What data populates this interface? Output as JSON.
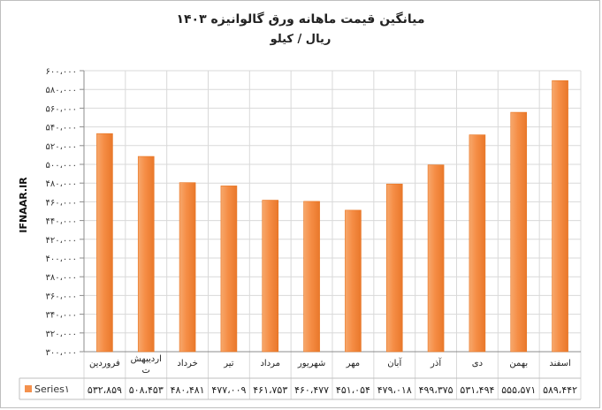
{
  "chart_data": {
    "type": "bar",
    "title": "میانگین قیمت ماهانه ورق گالوانیزه ۱۴۰۳",
    "subtitle": "ریال / کیلو",
    "watermark": "IFNAAR.IR",
    "categories": [
      "فروردین",
      "اردیبهشت",
      "خرداد",
      "تیر",
      "مرداد",
      "شهریور",
      "مهر",
      "آبان",
      "آذر",
      "دی",
      "بهمن",
      "اسفند"
    ],
    "values": [
      532859,
      508453,
      480481,
      477009,
      461753,
      460477,
      451054,
      479018,
      499375,
      531494,
      555571,
      589442
    ],
    "value_labels": [
      "۵۳۲،۸۵۹",
      "۵۰۸،۴۵۳",
      "۴۸۰،۴۸۱",
      "۴۷۷،۰۰۹",
      "۴۶۱،۷۵۳",
      "۴۶۰،۴۷۷",
      "۴۵۱،۰۵۴",
      "۴۷۹،۰۱۸",
      "۴۹۹،۳۷۵",
      "۵۳۱،۴۹۴",
      "۵۵۵،۵۷۱",
      "۵۸۹،۴۴۲"
    ],
    "ylim": [
      300000,
      600000
    ],
    "yticks": [
      300000,
      320000,
      340000,
      360000,
      380000,
      400000,
      420000,
      440000,
      460000,
      480000,
      500000,
      520000,
      540000,
      560000,
      580000,
      600000
    ],
    "ytick_labels": [
      "۳۰۰،۰۰۰",
      "۳۲۰،۰۰۰",
      "۳۴۰،۰۰۰",
      "۳۶۰،۰۰۰",
      "۳۸۰،۰۰۰",
      "۴۰۰،۰۰۰",
      "۴۲۰،۰۰۰",
      "۴۴۰،۰۰۰",
      "۴۶۰،۰۰۰",
      "۴۸۰،۰۰۰",
      "۵۰۰،۰۰۰",
      "۵۲۰،۰۰۰",
      "۵۴۰،۰۰۰",
      "۵۶۰،۰۰۰",
      "۵۸۰،۰۰۰",
      "۶۰۰،۰۰۰"
    ],
    "legend": "Series۱",
    "grid": true,
    "colors": {
      "bar": "#f4914d",
      "bar_edge": "#e8741f",
      "grid": "#d9d9d9"
    }
  }
}
